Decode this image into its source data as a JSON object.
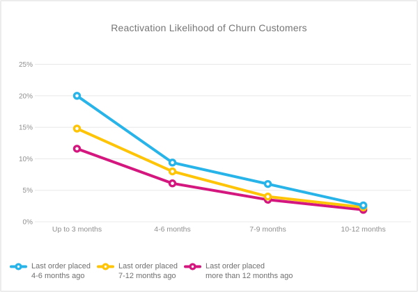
{
  "card": {
    "background": "#ffffff",
    "border_color": "#ececec"
  },
  "chart_data": {
    "type": "line",
    "title": "Reactivation Likelihood of Churn Customers",
    "categories": [
      "Up to 3 months",
      "4-6 months",
      "7-9 months",
      "10-12 months"
    ],
    "series": [
      {
        "name": "Last order placed 4-6 months ago",
        "legend_line1": "Last order placed",
        "legend_line2": "4-6 months ago",
        "color": "#28b4e8",
        "values": [
          20,
          9.4,
          6,
          2.6
        ]
      },
      {
        "name": "Last order placed 7-12 months ago",
        "legend_line1": "Last order placed",
        "legend_line2": "7-12 months ago",
        "color": "#fdc408",
        "values": [
          14.8,
          8,
          4,
          2.3
        ]
      },
      {
        "name": "Last order placed more than 12 months ago",
        "legend_line1": "Last order placed",
        "legend_line2": "more than 12 months ago",
        "color": "#d4177f",
        "values": [
          11.6,
          6.1,
          3.5,
          1.9
        ]
      }
    ],
    "y_ticks": [
      "0%",
      "5%",
      "10%",
      "15%",
      "20%",
      "25%"
    ],
    "ylim": [
      0,
      25
    ],
    "grid": true,
    "legend_position": "bottom",
    "marker_style": "open-circle"
  }
}
